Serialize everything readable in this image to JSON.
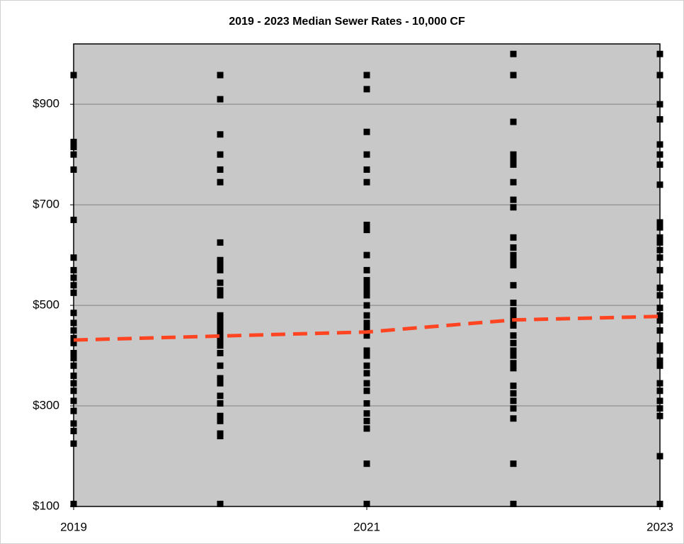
{
  "chart_data": {
    "type": "scatter",
    "title": "2019 - 2023 Median Sewer Rates - 10,000 CF",
    "xlim": [
      2019,
      2023
    ],
    "xticks": [
      2019,
      2021,
      2023
    ],
    "ylim": [
      100,
      1020
    ],
    "yticks": [
      {
        "value": 100,
        "label": "$100"
      },
      {
        "value": 300,
        "label": "$300"
      },
      {
        "value": 500,
        "label": "$500"
      },
      {
        "value": 700,
        "label": "$700"
      },
      {
        "value": 900,
        "label": "$900"
      }
    ],
    "grid": true,
    "point_color": "#000000",
    "groups": [
      {
        "x": 2019,
        "values": [
          958,
          825,
          815,
          800,
          770,
          670,
          595,
          570,
          555,
          540,
          525,
          485,
          465,
          450,
          435,
          425,
          405,
          395,
          380,
          360,
          345,
          330,
          310,
          290,
          265,
          250,
          225,
          105
        ]
      },
      {
        "x": 2020,
        "values": [
          958,
          910,
          840,
          800,
          770,
          745,
          625,
          590,
          580,
          570,
          545,
          530,
          520,
          480,
          470,
          460,
          450,
          440,
          430,
          420,
          405,
          380,
          355,
          345,
          320,
          305,
          280,
          270,
          245,
          240,
          105
        ]
      },
      {
        "x": 2021,
        "values": [
          958,
          930,
          845,
          800,
          770,
          745,
          660,
          650,
          600,
          570,
          550,
          540,
          530,
          520,
          500,
          480,
          465,
          460,
          450,
          440,
          410,
          400,
          380,
          365,
          345,
          330,
          305,
          285,
          270,
          255,
          185,
          105
        ]
      },
      {
        "x": 2022,
        "values": [
          1000,
          958,
          865,
          800,
          790,
          780,
          745,
          710,
          695,
          635,
          615,
          600,
          590,
          580,
          540,
          505,
          490,
          480,
          470,
          460,
          440,
          425,
          410,
          400,
          385,
          375,
          340,
          325,
          310,
          295,
          275,
          185,
          105
        ]
      },
      {
        "x": 2023,
        "values": [
          1000,
          958,
          900,
          870,
          820,
          800,
          780,
          740,
          665,
          655,
          635,
          625,
          610,
          595,
          570,
          535,
          520,
          495,
          480,
          470,
          450,
          420,
          410,
          390,
          380,
          345,
          330,
          310,
          295,
          280,
          200,
          105
        ]
      }
    ],
    "median": {
      "x": [
        2019,
        2020,
        2021,
        2022,
        2023
      ],
      "values": [
        431,
        439,
        447,
        471,
        478
      ],
      "color": "#ff4422"
    }
  }
}
